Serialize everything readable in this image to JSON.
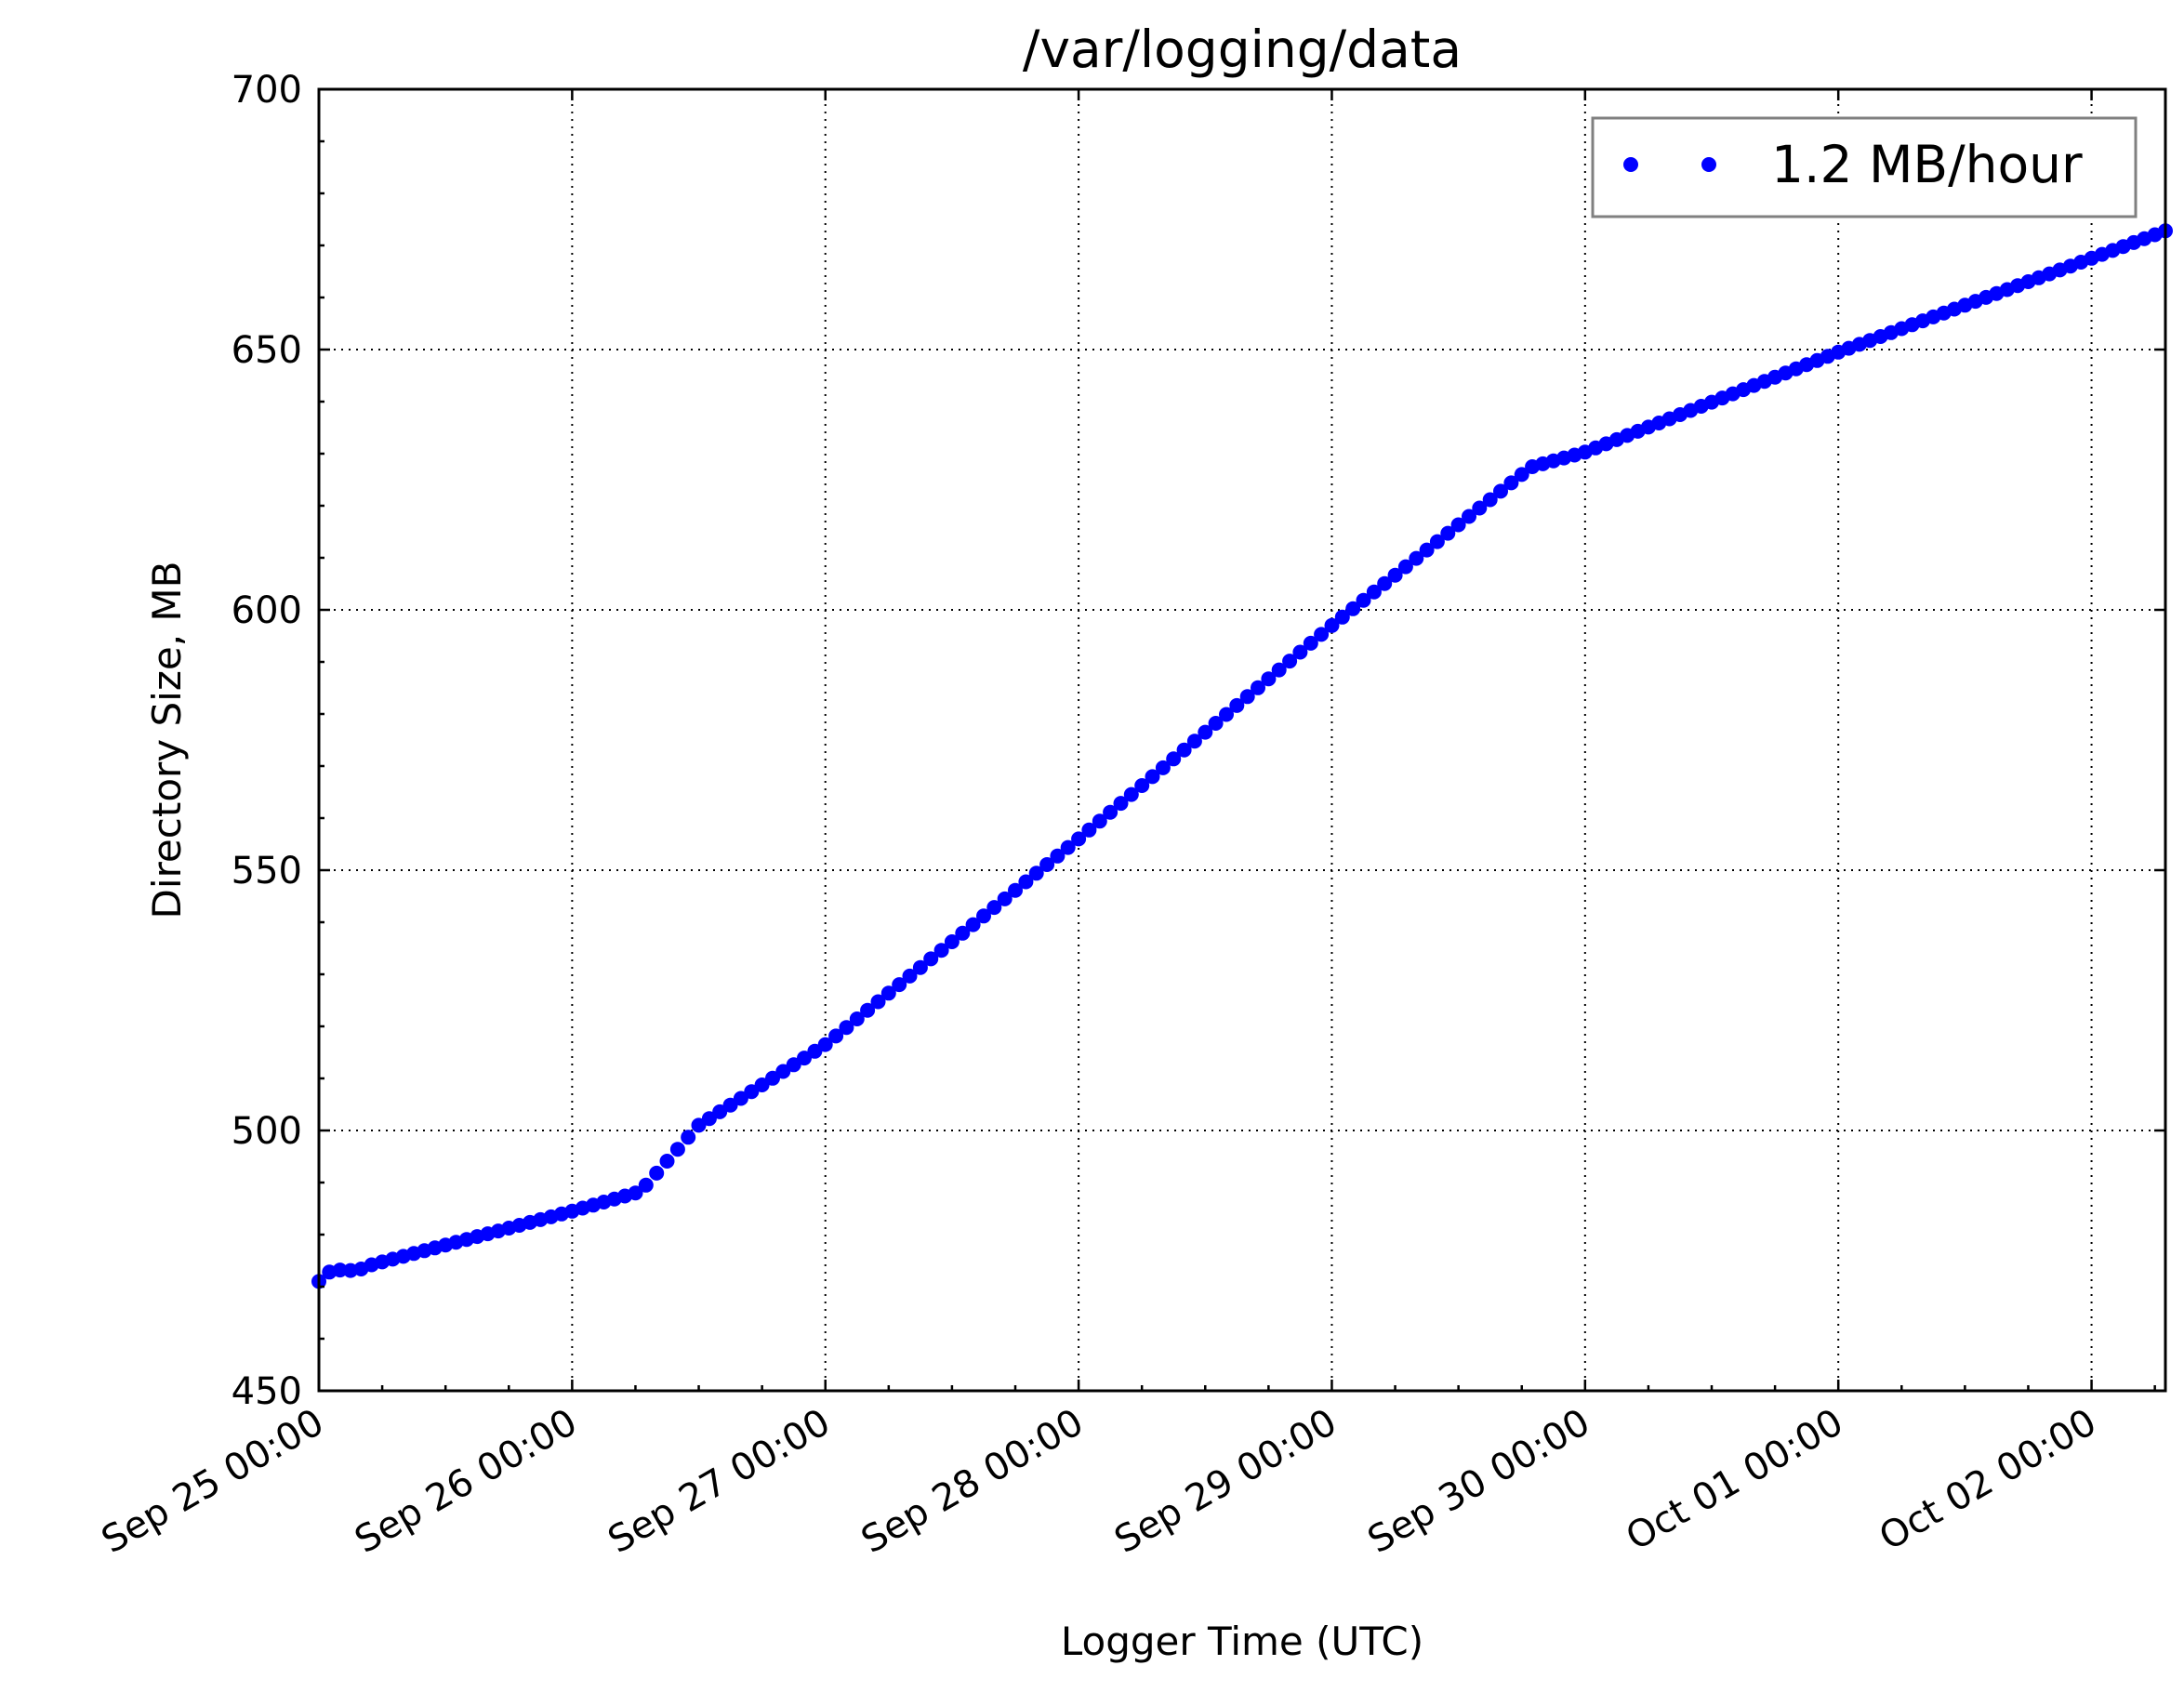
{
  "chart_data": {
    "type": "scatter",
    "title": "/var/logging/data",
    "xlabel": "Logger Time (UTC)",
    "ylabel": "Directory Size, MB",
    "xlim": [
      "2017-09-25 00:00",
      "2017-10-02 07:00"
    ],
    "ylim": [
      450,
      700
    ],
    "x_ticks": [
      "Sep 25 00:00",
      "Sep 26 00:00",
      "Sep 27 00:00",
      "Sep 28 00:00",
      "Sep 29 00:00",
      "Sep 30 00:00",
      "Oct 01 00:00",
      "Oct 02 00:00"
    ],
    "y_ticks": [
      "450",
      "500",
      "550",
      "600",
      "650",
      "700"
    ],
    "grid": true,
    "legend_position": "top-right",
    "series": [
      {
        "name": "1.2 MB/hour",
        "color": "#0000ff",
        "marker": "dot",
        "sampling": "one point per hour",
        "x": [
          "2017-09-25 00:00",
          "2017-09-25 01:00",
          "2017-09-25 02:00",
          "2017-09-25 03:00",
          "2017-09-25 04:00",
          "2017-09-25 05:00",
          "2017-09-26 00:00",
          "2017-09-26 06:00",
          "2017-09-26 07:00",
          "2017-09-26 12:00",
          "2017-09-27 00:00",
          "2017-09-28 00:00",
          "2017-09-29 00:00",
          "2017-09-29 18:00",
          "2017-09-29 19:00",
          "2017-09-30 00:00",
          "2017-10-01 00:00",
          "2017-10-02 07:00"
        ],
        "y": [
          471,
          472.8,
          473.2,
          473.1,
          473.4,
          474.2,
          484.5,
          488.0,
          489.5,
          501,
          516.5,
          556,
          597,
          626,
          627.5,
          630.3,
          649.5,
          672.8
        ]
      }
    ]
  }
}
